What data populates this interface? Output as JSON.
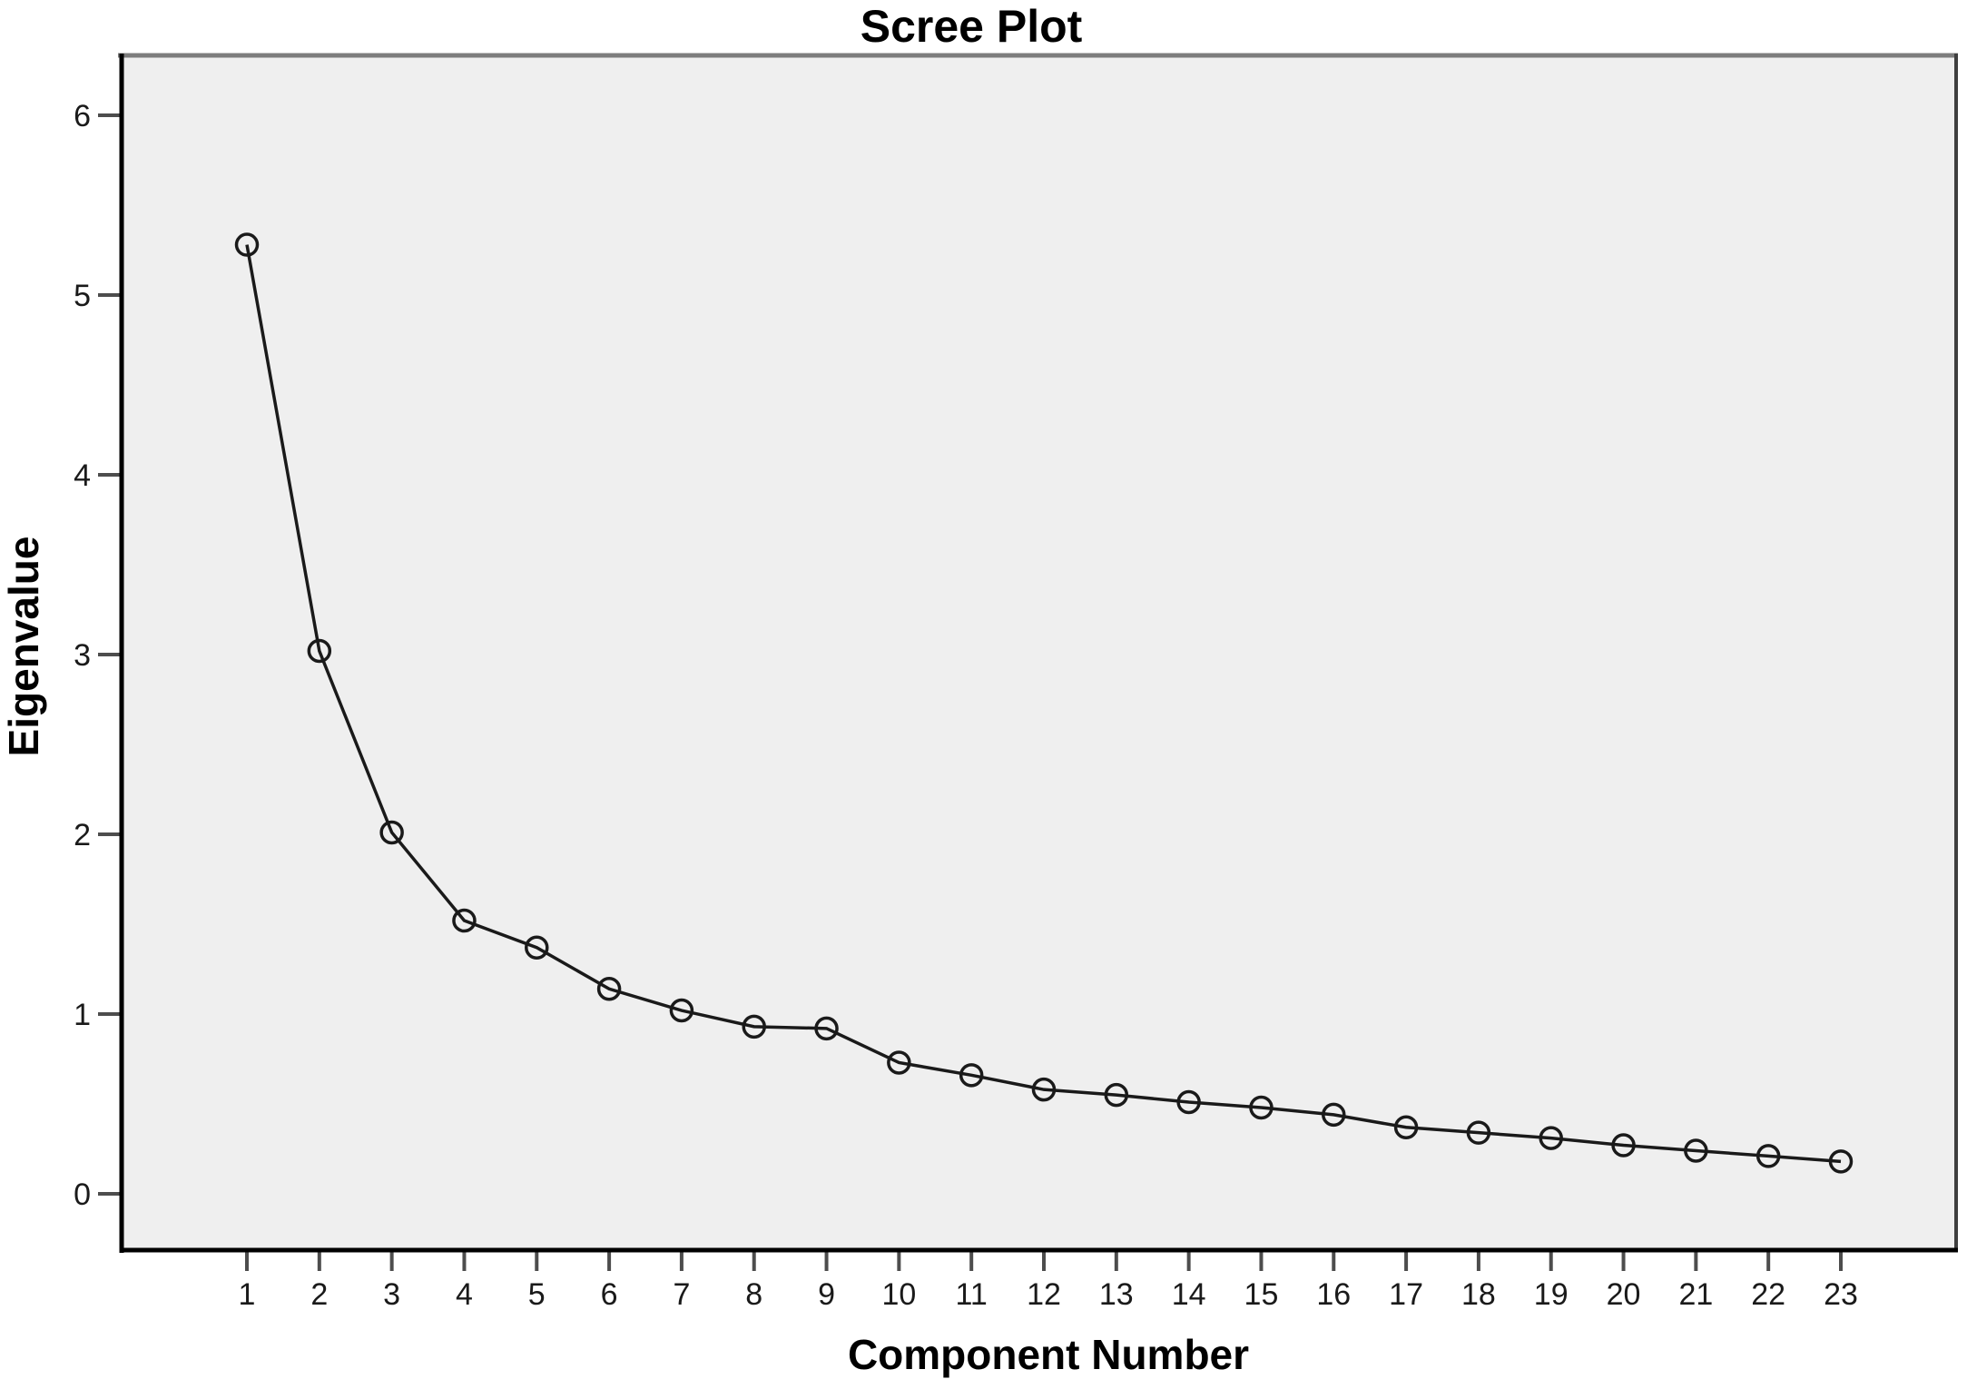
{
  "chart_data": {
    "type": "line",
    "title": "Scree Plot",
    "xlabel": "Component Number",
    "ylabel": "Eigenvalue",
    "x": [
      1,
      2,
      3,
      4,
      5,
      6,
      7,
      8,
      9,
      10,
      11,
      12,
      13,
      14,
      15,
      16,
      17,
      18,
      19,
      20,
      21,
      22,
      23
    ],
    "x_tick_labels": [
      "1",
      "2",
      "3",
      "4",
      "5",
      "6",
      "7",
      "8",
      "9",
      "10",
      "11",
      "12",
      "13",
      "14",
      "15",
      "16",
      "17",
      "18",
      "19",
      "20",
      "21",
      "22",
      "23"
    ],
    "y_ticks": [
      0,
      1,
      2,
      3,
      4,
      5,
      6
    ],
    "y_tick_labels": [
      "0",
      "1",
      "2",
      "3",
      "4",
      "5",
      "6"
    ],
    "ylim": [
      -0.31,
      6.33
    ],
    "xlim": [
      0,
      24.6
    ],
    "grid": false,
    "legend": "none",
    "marker": "open-circle",
    "series": [
      {
        "name": "Eigenvalue",
        "values": [
          5.28,
          3.02,
          2.01,
          1.52,
          1.37,
          1.14,
          1.02,
          0.93,
          0.92,
          0.73,
          0.66,
          0.58,
          0.55,
          0.51,
          0.48,
          0.44,
          0.37,
          0.34,
          0.31,
          0.27,
          0.24,
          0.21,
          0.18
        ]
      }
    ],
    "colors": {
      "plot_background": "#efefef",
      "outer_background": "#ffffff",
      "line": "#1a1a1a",
      "marker_stroke": "#1a1a1a",
      "frame_top": "#7d7d7d",
      "frame_right": "#3f3f3f",
      "frame_left": "#000000",
      "frame_bottom": "#000000",
      "tick_mark": "#4d4d4d",
      "text": "#000000"
    }
  }
}
